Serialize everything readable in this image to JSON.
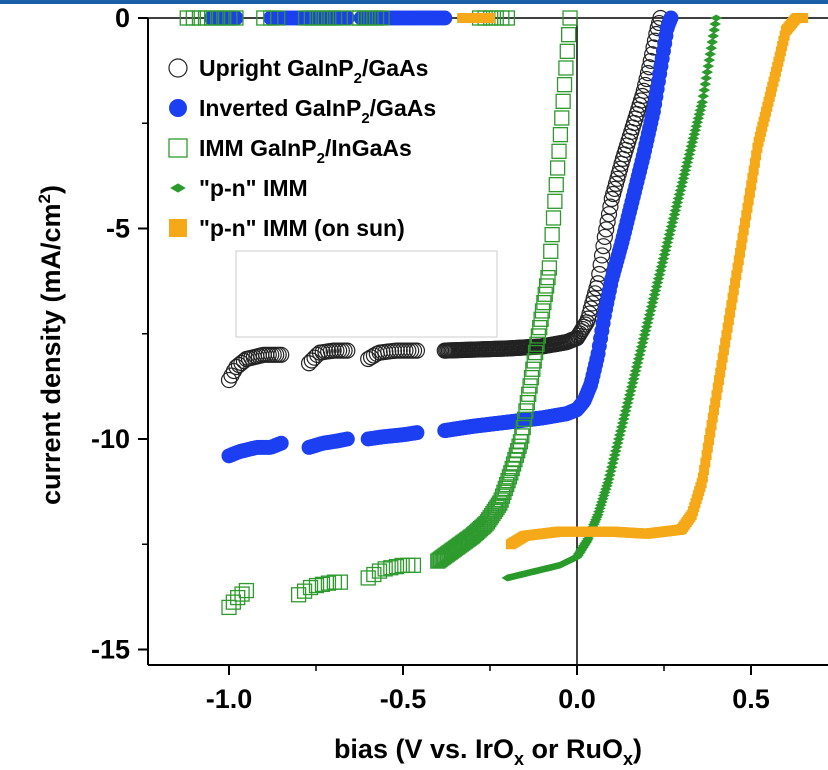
{
  "chart_data": {
    "type": "scatter",
    "xlabel": {
      "prefix": "bias (V vs. IrO",
      "sub1": "x",
      "mid": " or RuO",
      "sub2": "x",
      "suffix": ")"
    },
    "ylabel": {
      "prefix": "current density (mA/cm",
      "sup": "2",
      "suffix": ")"
    },
    "xlim": [
      -1.23,
      0.72
    ],
    "ylim": [
      -15.3,
      0
    ],
    "xticks": [
      {
        "value": -1.0,
        "label": "-1.0"
      },
      {
        "value": -0.5,
        "label": "-0.5"
      },
      {
        "value": 0.0,
        "label": "0.0"
      },
      {
        "value": 0.5,
        "label": "0.5"
      }
    ],
    "yticks": [
      {
        "value": 0,
        "label": "0"
      },
      {
        "value": -5,
        "label": "-5"
      },
      {
        "value": -10,
        "label": "-10"
      },
      {
        "value": -15,
        "label": "-15"
      }
    ],
    "grid": false,
    "legend_position": "top-left",
    "series": [
      {
        "key": "upright",
        "legend": {
          "pre": "Upright GaInP",
          "sub": "2",
          "post": "/GaAs"
        },
        "marker": "circle-open",
        "color": "#222222",
        "light_segments": [
          [
            -1.0,
            -0.85
          ],
          [
            -0.77,
            -0.66
          ],
          [
            -0.6,
            -0.46
          ]
        ],
        "light_points": [
          [
            -1.0,
            -8.6
          ],
          [
            -0.98,
            -8.3
          ],
          [
            -0.95,
            -8.1
          ],
          [
            -0.9,
            -8.0
          ],
          [
            -0.85,
            -8.0
          ],
          [
            -0.77,
            -8.2
          ],
          [
            -0.74,
            -7.95
          ],
          [
            -0.7,
            -7.9
          ],
          [
            -0.66,
            -7.9
          ],
          [
            -0.6,
            -8.1
          ],
          [
            -0.57,
            -7.95
          ],
          [
            -0.52,
            -7.9
          ],
          [
            -0.46,
            -7.9
          ],
          [
            -0.38,
            -7.9
          ],
          [
            -0.2,
            -7.85
          ],
          [
            -0.1,
            -7.8
          ],
          [
            -0.03,
            -7.7
          ],
          [
            0.0,
            -7.6
          ],
          [
            0.03,
            -7.2
          ],
          [
            0.06,
            -6.3
          ],
          [
            0.08,
            -5.2
          ],
          [
            0.1,
            -4.3
          ],
          [
            0.13,
            -3.4
          ],
          [
            0.16,
            -2.6
          ],
          [
            0.19,
            -1.8
          ],
          [
            0.21,
            -1.1
          ],
          [
            0.23,
            -0.3
          ],
          [
            0.24,
            0.0
          ]
        ],
        "dark_segments": []
      },
      {
        "key": "inverted",
        "legend": {
          "pre": "Inverted GaInP",
          "sub": "2",
          "post": "/GaAs"
        },
        "marker": "circle-filled",
        "color": "#1c3ff2",
        "light_segments": [
          [
            -1.0,
            -0.85
          ],
          [
            -0.77,
            -0.66
          ],
          [
            -0.6,
            -0.46
          ]
        ],
        "light_points": [
          [
            -1.0,
            -10.4
          ],
          [
            -0.97,
            -10.3
          ],
          [
            -0.92,
            -10.2
          ],
          [
            -0.88,
            -10.2
          ],
          [
            -0.85,
            -10.1
          ],
          [
            -0.77,
            -10.2
          ],
          [
            -0.73,
            -10.1
          ],
          [
            -0.69,
            -10.05
          ],
          [
            -0.66,
            -10.0
          ],
          [
            -0.6,
            -10.0
          ],
          [
            -0.56,
            -9.95
          ],
          [
            -0.5,
            -9.9
          ],
          [
            -0.46,
            -9.85
          ],
          [
            -0.38,
            -9.8
          ],
          [
            -0.3,
            -9.7
          ],
          [
            -0.2,
            -9.6
          ],
          [
            -0.1,
            -9.5
          ],
          [
            -0.03,
            -9.4
          ],
          [
            0.0,
            -9.3
          ],
          [
            0.02,
            -9.1
          ],
          [
            0.04,
            -8.7
          ],
          [
            0.06,
            -8.0
          ],
          [
            0.08,
            -7.0
          ],
          [
            0.1,
            -6.2
          ],
          [
            0.13,
            -5.3
          ],
          [
            0.16,
            -4.3
          ],
          [
            0.19,
            -3.3
          ],
          [
            0.22,
            -2.2
          ],
          [
            0.24,
            -1.2
          ],
          [
            0.26,
            -0.2
          ],
          [
            0.27,
            0.0
          ]
        ],
        "dark_segments": [
          [
            -1.05,
            -0.98
          ],
          [
            -0.88,
            -0.66
          ],
          [
            -0.62,
            -0.38
          ]
        ]
      },
      {
        "key": "imm",
        "legend": {
          "pre": "IMM GaInP",
          "sub": "2",
          "post": "/InGaAs"
        },
        "marker": "square-open",
        "color": "#2e9a2e",
        "light_segments": [
          [
            -1.0,
            -0.95
          ],
          [
            -0.8,
            -0.68
          ],
          [
            -0.6,
            -0.47
          ]
        ],
        "light_points": [
          [
            -1.0,
            -14.0
          ],
          [
            -0.98,
            -13.8
          ],
          [
            -0.95,
            -13.6
          ],
          [
            -0.8,
            -13.7
          ],
          [
            -0.76,
            -13.5
          ],
          [
            -0.7,
            -13.4
          ],
          [
            -0.68,
            -13.4
          ],
          [
            -0.6,
            -13.3
          ],
          [
            -0.56,
            -13.1
          ],
          [
            -0.5,
            -13.0
          ],
          [
            -0.47,
            -13.0
          ],
          [
            -0.4,
            -12.9
          ],
          [
            -0.35,
            -12.6
          ],
          [
            -0.3,
            -12.3
          ],
          [
            -0.26,
            -12.0
          ],
          [
            -0.22,
            -11.5
          ],
          [
            -0.19,
            -10.8
          ],
          [
            -0.16,
            -10.0
          ],
          [
            -0.14,
            -9.0
          ],
          [
            -0.12,
            -8.0
          ],
          [
            -0.1,
            -7.0
          ],
          [
            -0.08,
            -6.0
          ],
          [
            -0.07,
            -5.0
          ],
          [
            -0.06,
            -4.0
          ],
          [
            -0.05,
            -3.0
          ],
          [
            -0.04,
            -2.0
          ],
          [
            -0.03,
            -1.0
          ],
          [
            -0.02,
            0.0
          ]
        ],
        "dark_segments": [
          [
            -1.12,
            -0.98
          ],
          [
            -0.9,
            -0.86
          ],
          [
            -0.78,
            -0.68
          ],
          [
            -0.64,
            -0.56
          ],
          [
            -0.28,
            -0.2
          ]
        ]
      },
      {
        "key": "pn",
        "legend": {
          "pre": "\"p-n\" IMM",
          "sub": "",
          "post": ""
        },
        "marker": "diamond-filled",
        "color": "#2a9a2a",
        "light_segments": [],
        "light_points": [
          [
            -0.2,
            -13.3
          ],
          [
            -0.15,
            -13.2
          ],
          [
            -0.1,
            -13.1
          ],
          [
            -0.05,
            -13.0
          ],
          [
            0.0,
            -12.8
          ],
          [
            0.03,
            -12.4
          ],
          [
            0.06,
            -11.8
          ],
          [
            0.09,
            -11.0
          ],
          [
            0.12,
            -10.0
          ],
          [
            0.15,
            -9.0
          ],
          [
            0.18,
            -8.0
          ],
          [
            0.21,
            -7.0
          ],
          [
            0.24,
            -6.0
          ],
          [
            0.27,
            -5.0
          ],
          [
            0.3,
            -4.0
          ],
          [
            0.33,
            -3.0
          ],
          [
            0.36,
            -2.0
          ],
          [
            0.38,
            -1.0
          ],
          [
            0.4,
            0.0
          ]
        ],
        "dark_segments": []
      },
      {
        "key": "pn_sun",
        "legend": {
          "pre": "\"p-n\" IMM (on sun)",
          "sub": "",
          "post": ""
        },
        "marker": "square-filled",
        "color": "#f5a918",
        "light_segments": [],
        "light_points": [
          [
            -0.19,
            -12.5
          ],
          [
            -0.15,
            -12.3
          ],
          [
            -0.1,
            -12.25
          ],
          [
            -0.05,
            -12.2
          ],
          [
            0.0,
            -12.2
          ],
          [
            0.1,
            -12.2
          ],
          [
            0.2,
            -12.25
          ],
          [
            0.3,
            -12.15
          ],
          [
            0.33,
            -11.8
          ],
          [
            0.36,
            -11.0
          ],
          [
            0.38,
            -10.0
          ],
          [
            0.4,
            -9.0
          ],
          [
            0.42,
            -8.0
          ],
          [
            0.44,
            -7.0
          ],
          [
            0.46,
            -6.0
          ],
          [
            0.48,
            -5.0
          ],
          [
            0.5,
            -4.0
          ],
          [
            0.52,
            -3.0
          ],
          [
            0.55,
            -2.0
          ],
          [
            0.58,
            -1.0
          ],
          [
            0.6,
            -0.3
          ],
          [
            0.63,
            0.0
          ],
          [
            0.65,
            0.0
          ]
        ],
        "dark_segments": [
          [
            -0.33,
            -0.25
          ]
        ]
      }
    ]
  }
}
